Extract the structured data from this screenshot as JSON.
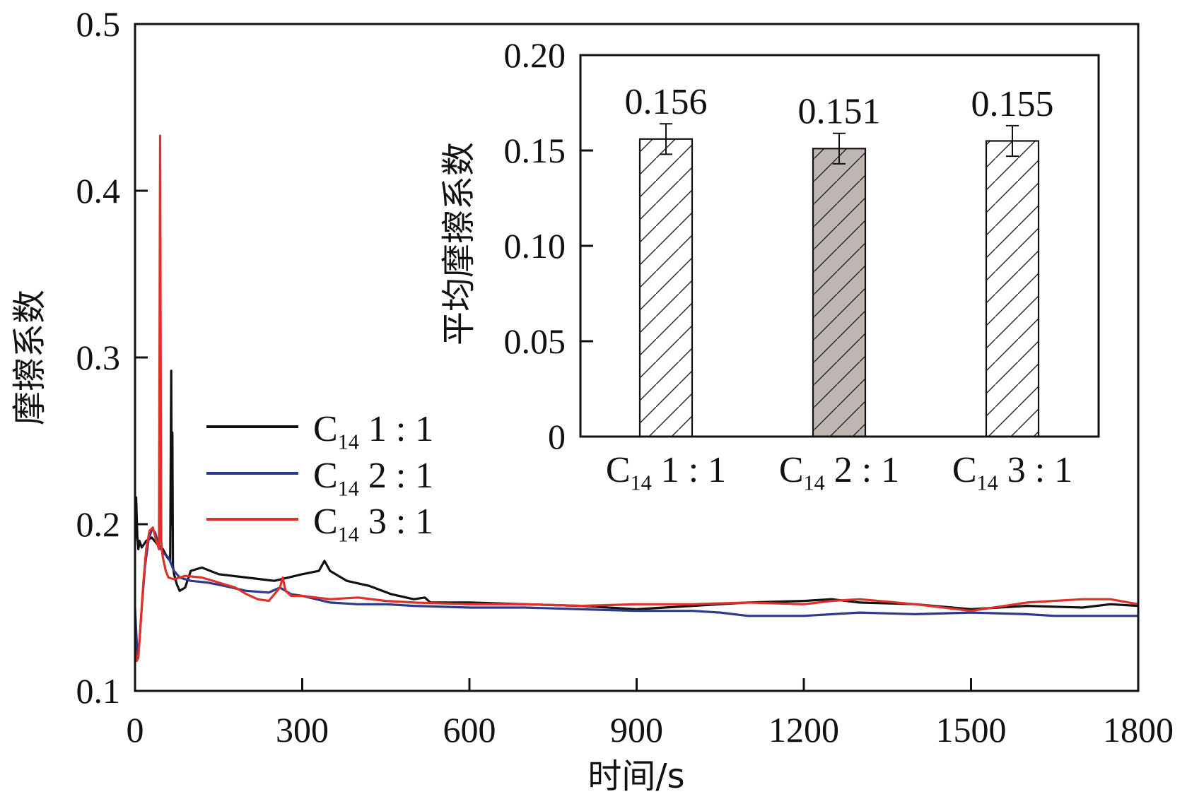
{
  "chart_data": [
    {
      "type": "line",
      "xlabel": "时间/s",
      "ylabel": "摩擦系数",
      "xlim": [
        0,
        1800
      ],
      "ylim": [
        0.1,
        0.5
      ],
      "xticks": [
        "0",
        "300",
        "600",
        "900",
        "1200",
        "1500",
        "1800"
      ],
      "yticks": [
        "0.1",
        "0.2",
        "0.3",
        "0.4",
        "0.5"
      ],
      "legend_position": "center-left",
      "series": [
        {
          "name": "C14 1 : 1",
          "name_base": "C",
          "name_sub": "14",
          "name_ratio": "1 : 1",
          "color": "#111111",
          "x": [
            0,
            2,
            4,
            6,
            8,
            12,
            20,
            30,
            40,
            50,
            58,
            63,
            65,
            66,
            67,
            68,
            70,
            75,
            80,
            90,
            100,
            120,
            150,
            200,
            250,
            300,
            330,
            340,
            350,
            380,
            420,
            460,
            500,
            520,
            530,
            600,
            700,
            800,
            850,
            900,
            1000,
            1100,
            1200,
            1250,
            1300,
            1400,
            1500,
            1600,
            1700,
            1750,
            1800
          ],
          "y": [
            0.19,
            0.216,
            0.193,
            0.185,
            0.19,
            0.186,
            0.19,
            0.192,
            0.188,
            0.185,
            0.18,
            0.178,
            0.292,
            0.2,
            0.255,
            0.175,
            0.17,
            0.164,
            0.16,
            0.162,
            0.172,
            0.174,
            0.17,
            0.168,
            0.166,
            0.17,
            0.172,
            0.178,
            0.172,
            0.166,
            0.163,
            0.158,
            0.155,
            0.156,
            0.153,
            0.153,
            0.152,
            0.151,
            0.15,
            0.149,
            0.151,
            0.153,
            0.154,
            0.155,
            0.153,
            0.152,
            0.149,
            0.151,
            0.15,
            0.152,
            0.151
          ]
        },
        {
          "name": "C14 2 : 1",
          "name_base": "C",
          "name_sub": "14",
          "name_ratio": "2 : 1",
          "color": "#2d3a8c",
          "x": [
            0,
            4,
            8,
            12,
            18,
            24,
            30,
            36,
            42,
            50,
            60,
            70,
            80,
            100,
            130,
            160,
            200,
            240,
            260,
            280,
            300,
            350,
            400,
            450,
            500,
            600,
            700,
            800,
            900,
            1000,
            1050,
            1100,
            1200,
            1300,
            1400,
            1500,
            1600,
            1650,
            1700,
            1800
          ],
          "y": [
            0.15,
            0.122,
            0.13,
            0.15,
            0.175,
            0.19,
            0.197,
            0.195,
            0.188,
            0.183,
            0.18,
            0.172,
            0.168,
            0.166,
            0.165,
            0.163,
            0.16,
            0.159,
            0.162,
            0.158,
            0.157,
            0.153,
            0.152,
            0.152,
            0.151,
            0.15,
            0.15,
            0.149,
            0.148,
            0.148,
            0.147,
            0.145,
            0.145,
            0.147,
            0.146,
            0.147,
            0.146,
            0.145,
            0.145,
            0.145
          ]
        },
        {
          "name": "C14 3 : 1",
          "name_base": "C",
          "name_sub": "14",
          "name_ratio": "3 : 1",
          "color": "#e0302a",
          "x": [
            0,
            3,
            6,
            10,
            15,
            20,
            26,
            32,
            38,
            43,
            45,
            46,
            47,
            48,
            50,
            55,
            60,
            70,
            90,
            120,
            150,
            180,
            200,
            220,
            240,
            260,
            265,
            270,
            280,
            300,
            350,
            400,
            450,
            500,
            600,
            700,
            800,
            900,
            1000,
            1100,
            1200,
            1250,
            1300,
            1400,
            1500,
            1600,
            1700,
            1750,
            1800
          ],
          "y": [
            0.125,
            0.118,
            0.12,
            0.14,
            0.165,
            0.185,
            0.196,
            0.198,
            0.19,
            0.185,
            0.433,
            0.3,
            0.19,
            0.185,
            0.18,
            0.172,
            0.168,
            0.167,
            0.169,
            0.168,
            0.165,
            0.162,
            0.158,
            0.155,
            0.154,
            0.162,
            0.168,
            0.16,
            0.157,
            0.157,
            0.155,
            0.156,
            0.154,
            0.153,
            0.152,
            0.152,
            0.151,
            0.152,
            0.152,
            0.153,
            0.152,
            0.154,
            0.155,
            0.152,
            0.148,
            0.153,
            0.155,
            0.155,
            0.152
          ]
        }
      ]
    },
    {
      "type": "bar",
      "ylabel": "平均摩擦系数",
      "ylim": [
        0,
        0.2
      ],
      "yticks": [
        "0",
        "0.05",
        "0.10",
        "0.15",
        "0.20"
      ],
      "categories": [
        {
          "base": "C",
          "sub": "14",
          "ratio": "1 : 1"
        },
        {
          "base": "C",
          "sub": "14",
          "ratio": "2 : 1"
        },
        {
          "base": "C",
          "sub": "14",
          "ratio": "3 : 1"
        }
      ],
      "values": [
        0.156,
        0.151,
        0.155
      ],
      "value_labels": [
        "0.156",
        "0.151",
        "0.155"
      ],
      "error": [
        0.008,
        0.008,
        0.008
      ],
      "fills": [
        "#ffffff",
        "#bdb6b3",
        "#ffffff"
      ],
      "hatch": "diagonal"
    }
  ]
}
